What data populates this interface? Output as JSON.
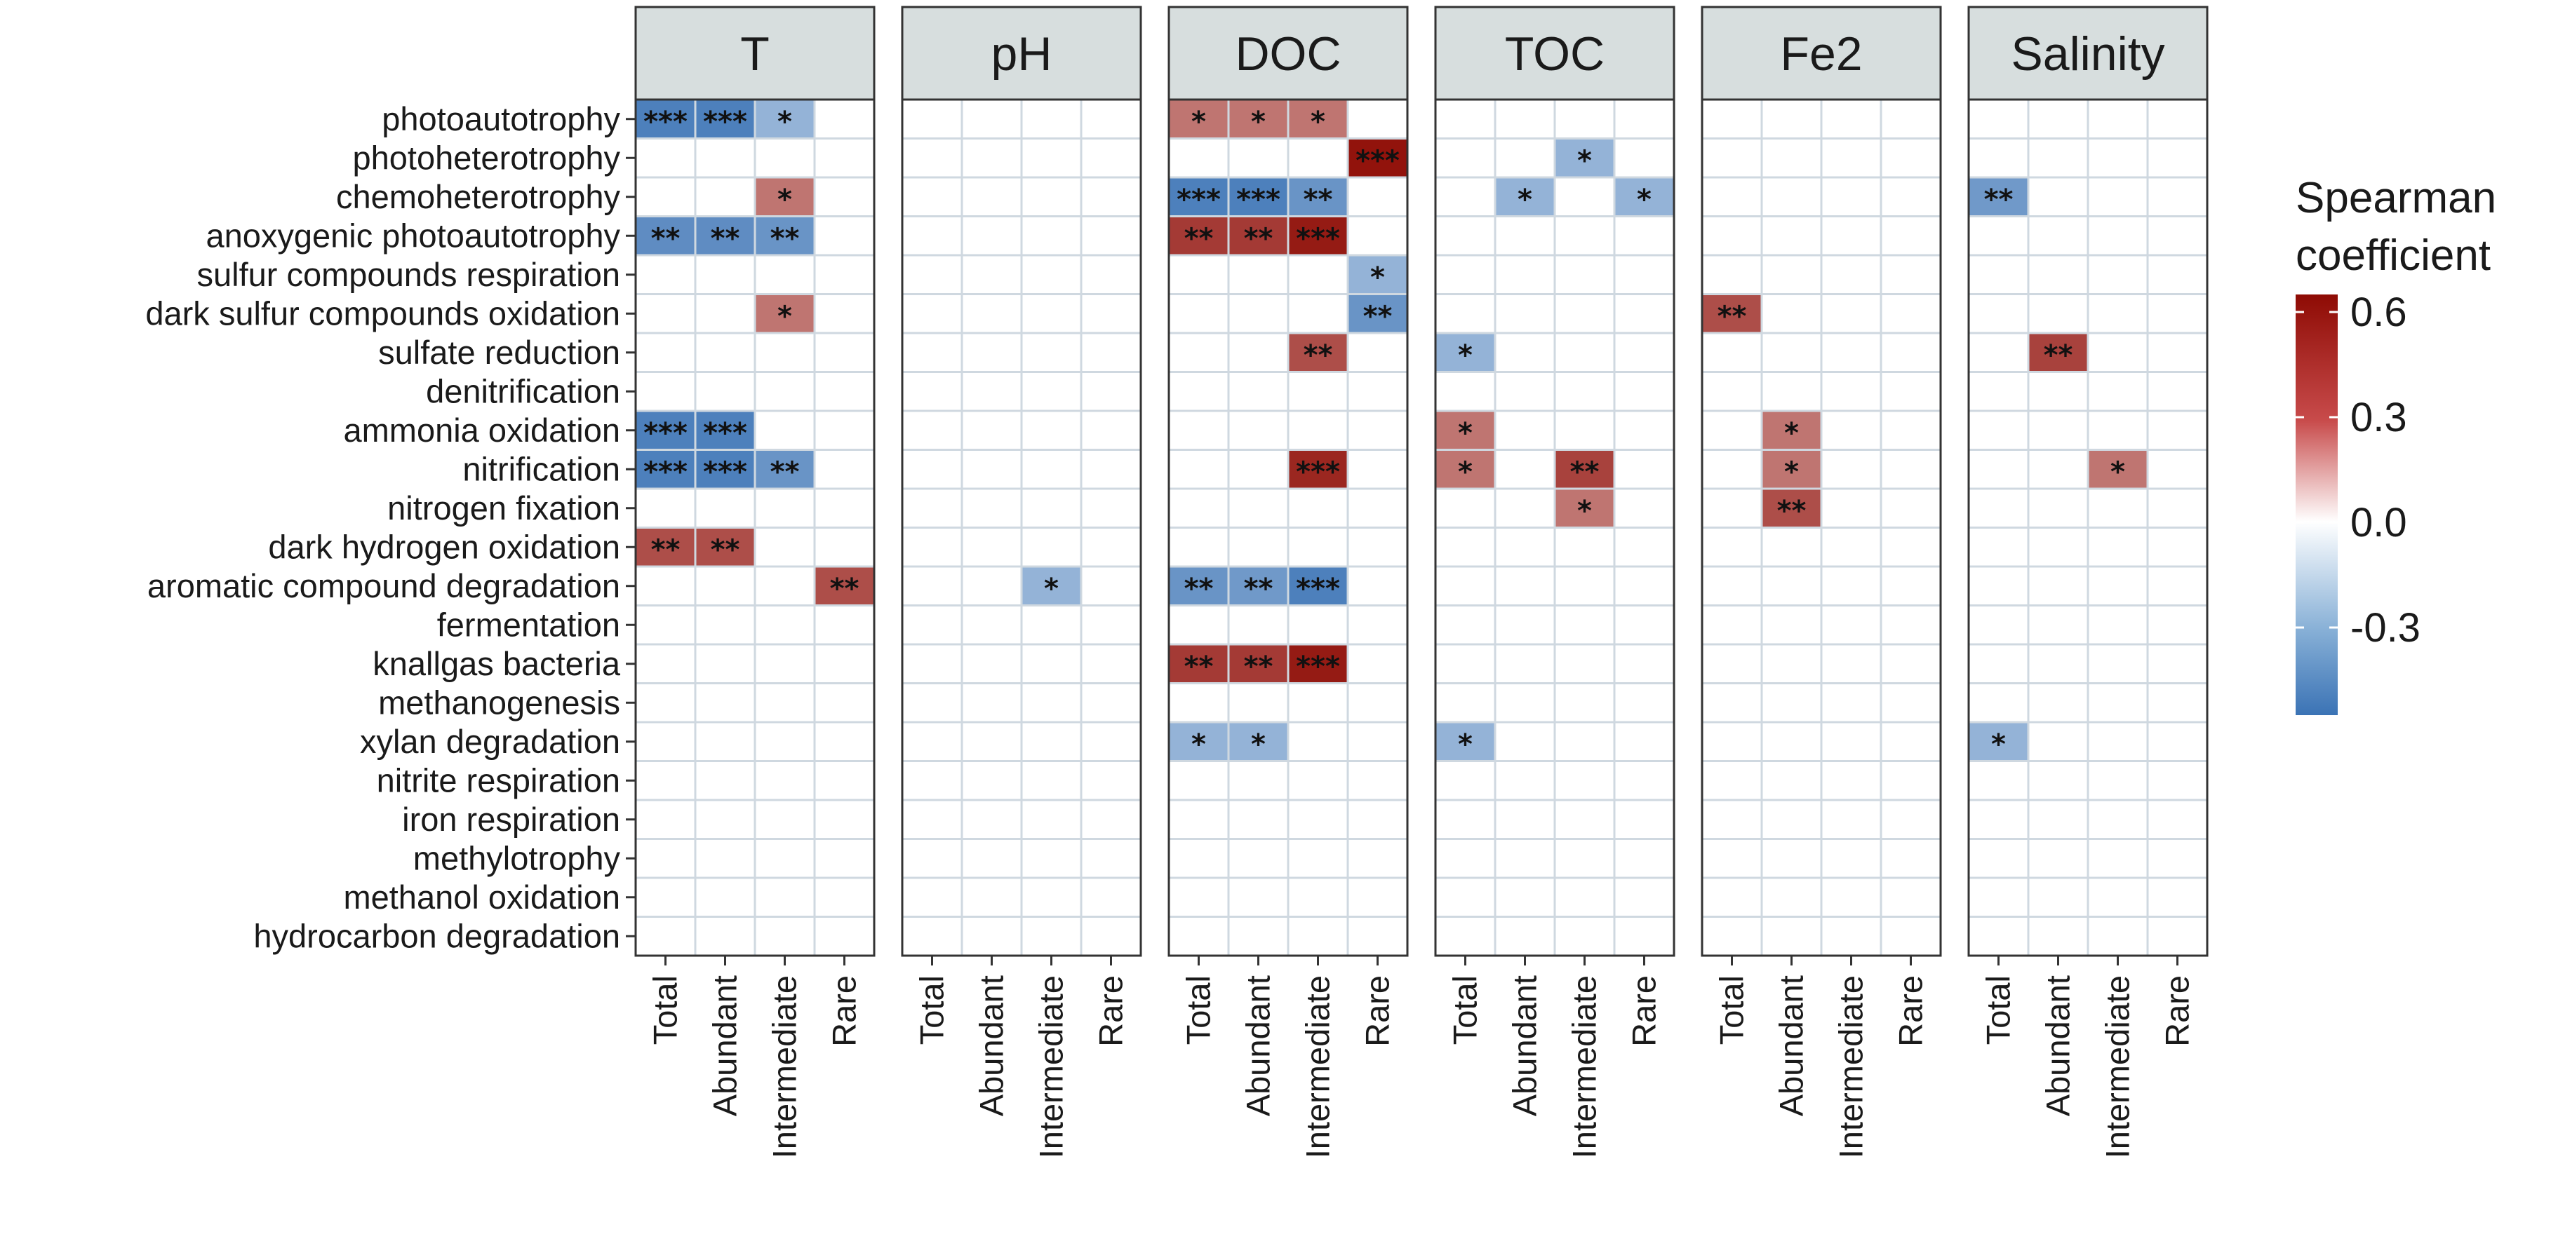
{
  "chart_data": {
    "type": "heatmap",
    "title": "",
    "facets": [
      "T",
      "pH",
      "DOC",
      "TOC",
      "Fe2",
      "Salinity"
    ],
    "columns": [
      "Total",
      "Abundant",
      "Intermediate",
      "Rare"
    ],
    "rows": [
      "photoautotrophy",
      "photoheterotrophy",
      "chemoheterotrophy",
      "anoxygenic photoautotrophy",
      "sulfur compounds respiration",
      "dark sulfur compounds oxidation",
      "sulfate reduction",
      "denitrification",
      "ammonia oxidation",
      "nitrification",
      "nitrogen fixation",
      "dark hydrogen oxidation",
      "aromatic compound degradation",
      "fermentation",
      "knallgas bacteria",
      "methanogenesis",
      "xylan degradation",
      "nitrite respiration",
      "iron respiration",
      "methylotrophy",
      "methanol oxidation",
      "hydrocarbon degradation"
    ],
    "cells": [
      {
        "facet": "T",
        "row": "photoautotrophy",
        "col": "Total",
        "value": -0.5,
        "sig": "***"
      },
      {
        "facet": "T",
        "row": "photoautotrophy",
        "col": "Abundant",
        "value": -0.5,
        "sig": "***"
      },
      {
        "facet": "T",
        "row": "photoautotrophy",
        "col": "Intermediate",
        "value": -0.3,
        "sig": "*"
      },
      {
        "facet": "T",
        "row": "chemoheterotrophy",
        "col": "Intermediate",
        "value": 0.35,
        "sig": "*"
      },
      {
        "facet": "T",
        "row": "anoxygenic photoautotrophy",
        "col": "Total",
        "value": -0.45,
        "sig": "**"
      },
      {
        "facet": "T",
        "row": "anoxygenic photoautotrophy",
        "col": "Abundant",
        "value": -0.45,
        "sig": "**"
      },
      {
        "facet": "T",
        "row": "anoxygenic photoautotrophy",
        "col": "Intermediate",
        "value": -0.42,
        "sig": "**"
      },
      {
        "facet": "T",
        "row": "dark sulfur compounds oxidation",
        "col": "Intermediate",
        "value": 0.35,
        "sig": "*"
      },
      {
        "facet": "T",
        "row": "ammonia oxidation",
        "col": "Total",
        "value": -0.5,
        "sig": "***"
      },
      {
        "facet": "T",
        "row": "ammonia oxidation",
        "col": "Abundant",
        "value": -0.5,
        "sig": "***"
      },
      {
        "facet": "T",
        "row": "nitrification",
        "col": "Total",
        "value": -0.5,
        "sig": "***"
      },
      {
        "facet": "T",
        "row": "nitrification",
        "col": "Abundant",
        "value": -0.5,
        "sig": "***"
      },
      {
        "facet": "T",
        "row": "nitrification",
        "col": "Intermediate",
        "value": -0.42,
        "sig": "**"
      },
      {
        "facet": "T",
        "row": "dark hydrogen oxidation",
        "col": "Total",
        "value": 0.45,
        "sig": "**"
      },
      {
        "facet": "T",
        "row": "dark hydrogen oxidation",
        "col": "Abundant",
        "value": 0.45,
        "sig": "**"
      },
      {
        "facet": "T",
        "row": "aromatic compound degradation",
        "col": "Rare",
        "value": 0.45,
        "sig": "**"
      },
      {
        "facet": "pH",
        "row": "aromatic compound degradation",
        "col": "Intermediate",
        "value": -0.3,
        "sig": "*"
      },
      {
        "facet": "DOC",
        "row": "photoautotrophy",
        "col": "Total",
        "value": 0.35,
        "sig": "*"
      },
      {
        "facet": "DOC",
        "row": "photoautotrophy",
        "col": "Abundant",
        "value": 0.35,
        "sig": "*"
      },
      {
        "facet": "DOC",
        "row": "photoautotrophy",
        "col": "Intermediate",
        "value": 0.35,
        "sig": "*"
      },
      {
        "facet": "DOC",
        "row": "photoheterotrophy",
        "col": "Rare",
        "value": 0.6,
        "sig": "***"
      },
      {
        "facet": "DOC",
        "row": "chemoheterotrophy",
        "col": "Total",
        "value": -0.5,
        "sig": "***"
      },
      {
        "facet": "DOC",
        "row": "chemoheterotrophy",
        "col": "Abundant",
        "value": -0.5,
        "sig": "***"
      },
      {
        "facet": "DOC",
        "row": "chemoheterotrophy",
        "col": "Intermediate",
        "value": -0.42,
        "sig": "**"
      },
      {
        "facet": "DOC",
        "row": "anoxygenic photoautotrophy",
        "col": "Total",
        "value": 0.5,
        "sig": "**"
      },
      {
        "facet": "DOC",
        "row": "anoxygenic photoautotrophy",
        "col": "Abundant",
        "value": 0.5,
        "sig": "**"
      },
      {
        "facet": "DOC",
        "row": "anoxygenic photoautotrophy",
        "col": "Intermediate",
        "value": 0.58,
        "sig": "***"
      },
      {
        "facet": "DOC",
        "row": "sulfur compounds respiration",
        "col": "Rare",
        "value": -0.3,
        "sig": "*"
      },
      {
        "facet": "DOC",
        "row": "dark sulfur compounds oxidation",
        "col": "Rare",
        "value": -0.42,
        "sig": "**"
      },
      {
        "facet": "DOC",
        "row": "sulfate reduction",
        "col": "Intermediate",
        "value": 0.45,
        "sig": "**"
      },
      {
        "facet": "DOC",
        "row": "nitrification",
        "col": "Intermediate",
        "value": 0.55,
        "sig": "***"
      },
      {
        "facet": "DOC",
        "row": "aromatic compound degradation",
        "col": "Total",
        "value": -0.42,
        "sig": "**"
      },
      {
        "facet": "DOC",
        "row": "aromatic compound degradation",
        "col": "Abundant",
        "value": -0.4,
        "sig": "**"
      },
      {
        "facet": "DOC",
        "row": "aromatic compound degradation",
        "col": "Intermediate",
        "value": -0.5,
        "sig": "***"
      },
      {
        "facet": "DOC",
        "row": "knallgas bacteria",
        "col": "Total",
        "value": 0.5,
        "sig": "**"
      },
      {
        "facet": "DOC",
        "row": "knallgas bacteria",
        "col": "Abundant",
        "value": 0.5,
        "sig": "**"
      },
      {
        "facet": "DOC",
        "row": "knallgas bacteria",
        "col": "Intermediate",
        "value": 0.58,
        "sig": "***"
      },
      {
        "facet": "DOC",
        "row": "xylan degradation",
        "col": "Total",
        "value": -0.3,
        "sig": "*"
      },
      {
        "facet": "DOC",
        "row": "xylan degradation",
        "col": "Abundant",
        "value": -0.3,
        "sig": "*"
      },
      {
        "facet": "TOC",
        "row": "photoheterotrophy",
        "col": "Intermediate",
        "value": -0.3,
        "sig": "*"
      },
      {
        "facet": "TOC",
        "row": "chemoheterotrophy",
        "col": "Abundant",
        "value": -0.3,
        "sig": "*"
      },
      {
        "facet": "TOC",
        "row": "chemoheterotrophy",
        "col": "Rare",
        "value": -0.3,
        "sig": "*"
      },
      {
        "facet": "TOC",
        "row": "sulfate reduction",
        "col": "Total",
        "value": -0.3,
        "sig": "*"
      },
      {
        "facet": "TOC",
        "row": "ammonia oxidation",
        "col": "Total",
        "value": 0.35,
        "sig": "*"
      },
      {
        "facet": "TOC",
        "row": "nitrification",
        "col": "Total",
        "value": 0.35,
        "sig": "*"
      },
      {
        "facet": "TOC",
        "row": "nitrification",
        "col": "Intermediate",
        "value": 0.48,
        "sig": "**"
      },
      {
        "facet": "TOC",
        "row": "nitrogen fixation",
        "col": "Intermediate",
        "value": 0.35,
        "sig": "*"
      },
      {
        "facet": "TOC",
        "row": "xylan degradation",
        "col": "Total",
        "value": -0.3,
        "sig": "*"
      },
      {
        "facet": "Fe2",
        "row": "dark sulfur compounds oxidation",
        "col": "Total",
        "value": 0.45,
        "sig": "**"
      },
      {
        "facet": "Fe2",
        "row": "ammonia oxidation",
        "col": "Abundant",
        "value": 0.35,
        "sig": "*"
      },
      {
        "facet": "Fe2",
        "row": "nitrification",
        "col": "Abundant",
        "value": 0.35,
        "sig": "*"
      },
      {
        "facet": "Fe2",
        "row": "nitrogen fixation",
        "col": "Abundant",
        "value": 0.45,
        "sig": "**"
      },
      {
        "facet": "Salinity",
        "row": "chemoheterotrophy",
        "col": "Total",
        "value": -0.4,
        "sig": "**"
      },
      {
        "facet": "Salinity",
        "row": "sulfate reduction",
        "col": "Abundant",
        "value": 0.48,
        "sig": "**"
      },
      {
        "facet": "Salinity",
        "row": "nitrification",
        "col": "Intermediate",
        "value": 0.35,
        "sig": "*"
      },
      {
        "facet": "Salinity",
        "row": "xylan degradation",
        "col": "Total",
        "value": -0.3,
        "sig": "*"
      }
    ],
    "legend": {
      "title_lines": [
        "Spearman",
        "coefficient"
      ],
      "ticks": [
        "0.6",
        "0.3",
        "0.0",
        "-0.3"
      ],
      "tick_values": [
        0.6,
        0.3,
        0.0,
        -0.3
      ],
      "range": [
        -0.55,
        0.65
      ],
      "placement": "right"
    },
    "colors": {
      "negative": "#3b73b5",
      "neutral": "#ffffff",
      "positive": "#8e0b04",
      "strip_fill": "#d7dede",
      "grid": "#cfd8e0",
      "panel_border": "#333333"
    }
  }
}
